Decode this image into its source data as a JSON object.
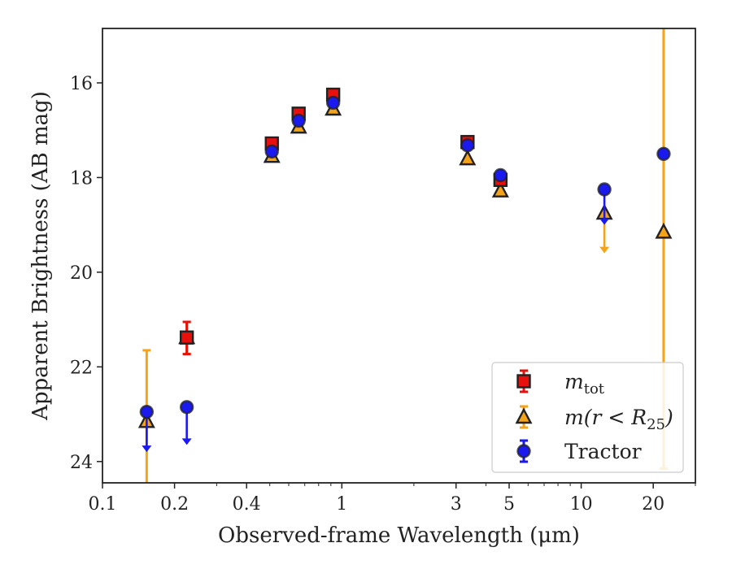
{
  "chart_data": {
    "type": "scatter",
    "title": "",
    "xlabel": "Observed-frame Wavelength (μm)",
    "ylabel": "Apparent Brightness (AB mag)",
    "xscale": "log",
    "xlim": [
      0.1,
      30
    ],
    "ylim": [
      24.45,
      14.85
    ],
    "y_inverted": true,
    "x_ticks": [
      0.1,
      0.2,
      0.4,
      1,
      3,
      5,
      10,
      20
    ],
    "x_tick_labels": [
      "0.1",
      "0.2",
      "0.4",
      "1",
      "3",
      "5",
      "10",
      "20"
    ],
    "y_ticks": [
      16,
      18,
      20,
      22,
      24
    ],
    "y_tick_labels": [
      "16",
      "18",
      "20",
      "22",
      "24"
    ],
    "grid": false,
    "legend_position": "lower-right",
    "series": [
      {
        "name": "m_tot",
        "label_main": "m",
        "label_sub": "tot",
        "marker": "square",
        "color": "#e8100c",
        "points": [
          {
            "x": 0.225,
            "y": 21.38,
            "err_low": 0.35,
            "err_high": 0.33
          },
          {
            "x": 0.51,
            "y": 17.28
          },
          {
            "x": 0.66,
            "y": 16.65
          },
          {
            "x": 0.92,
            "y": 16.25
          },
          {
            "x": 3.35,
            "y": 17.25
          },
          {
            "x": 4.6,
            "y": 18.05
          }
        ]
      },
      {
        "name": "m(r < R25)",
        "label_main": "m(r < R",
        "label_sub": "25",
        "label_tail": ")",
        "marker": "triangle",
        "color": "#f5a318",
        "points": [
          {
            "x": 0.153,
            "y": 23.15,
            "err_low": 2.05,
            "err_high": 1.5
          },
          {
            "x": 0.225,
            "y": 21.38,
            "err_low": 0.35,
            "err_high": 0.33
          },
          {
            "x": 0.51,
            "y": 17.55
          },
          {
            "x": 0.66,
            "y": 16.93
          },
          {
            "x": 0.92,
            "y": 16.55
          },
          {
            "x": 3.35,
            "y": 17.6
          },
          {
            "x": 4.6,
            "y": 18.28
          },
          {
            "x": 12.5,
            "y": 18.75,
            "upper_limit": true,
            "arrow_to": 19.6
          },
          {
            "x": 22.1,
            "y": 19.15,
            "err_low": 5.0,
            "err_high": 5.0
          }
        ]
      },
      {
        "name": "Tractor",
        "label_main": "Tractor",
        "marker": "circle",
        "color": "#1a1aee",
        "points": [
          {
            "x": 0.153,
            "y": 22.95,
            "upper_limit": true,
            "arrow_to": 23.8
          },
          {
            "x": 0.225,
            "y": 22.85,
            "upper_limit": true,
            "arrow_to": 23.65
          },
          {
            "x": 0.51,
            "y": 17.45
          },
          {
            "x": 0.66,
            "y": 16.8
          },
          {
            "x": 0.92,
            "y": 16.42
          },
          {
            "x": 3.35,
            "y": 17.32
          },
          {
            "x": 4.6,
            "y": 17.95
          },
          {
            "x": 12.5,
            "y": 18.25,
            "upper_limit": true,
            "arrow_to": 19.0
          },
          {
            "x": 22.1,
            "y": 17.5
          }
        ]
      }
    ]
  }
}
